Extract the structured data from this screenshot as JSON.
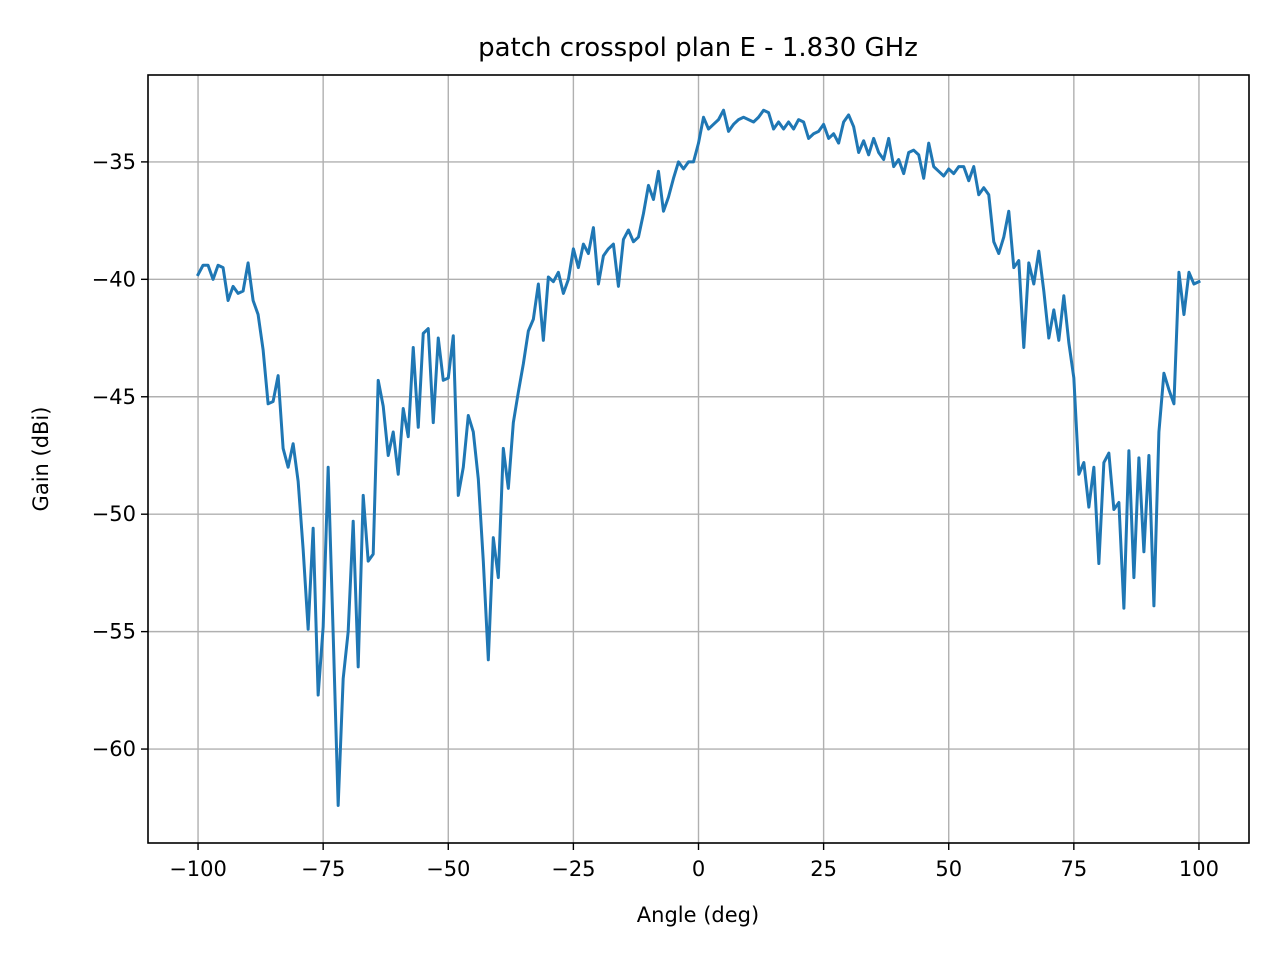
{
  "chart_data": {
    "type": "line",
    "title": "patch crosspol plan E - 1.830 GHz",
    "xlabel": "Angle (deg)",
    "ylabel": "Gain (dBi)",
    "xlim": [
      -110,
      110
    ],
    "ylim": [
      -64.0,
      -31.3
    ],
    "xticks": [
      -100,
      -75,
      -50,
      -25,
      0,
      25,
      50,
      75,
      100
    ],
    "xtick_labels": [
      "−100",
      "−75",
      "−50",
      "−25",
      "0",
      "25",
      "50",
      "75",
      "100"
    ],
    "yticks": [
      -35,
      -40,
      -45,
      -50,
      -55,
      -60
    ],
    "ytick_labels": [
      "−35",
      "−40",
      "−45",
      "−50",
      "−55",
      "−60"
    ],
    "grid": true,
    "line_color": "#1f77b4",
    "series": [
      {
        "x": [
          -100,
          -99,
          -98,
          -97,
          -96,
          -95,
          -94,
          -93,
          -92,
          -91,
          -90,
          -89,
          -88,
          -87,
          -86,
          -85,
          -84,
          -83,
          -82,
          -81,
          -80,
          -79,
          -78,
          -77,
          -76,
          -75,
          -74,
          -73,
          -72,
          -71,
          -70,
          -69,
          -68,
          -67,
          -66,
          -65,
          -64,
          -63,
          -62,
          -61,
          -60,
          -59,
          -58,
          -57,
          -56,
          -55,
          -54,
          -53,
          -52,
          -51,
          -50,
          -49,
          -48,
          -47,
          -46,
          -45,
          -44,
          -43,
          -42,
          -41,
          -40,
          -39,
          -38,
          -37,
          -36,
          -35,
          -34,
          -33,
          -32,
          -31,
          -30,
          -29,
          -28,
          -27,
          -26,
          -25,
          -24,
          -23,
          -22,
          -21,
          -20,
          -19,
          -18,
          -17,
          -16,
          -15,
          -14,
          -13,
          -12,
          -11,
          -10,
          -9,
          -8,
          -7,
          -6,
          -5,
          -4,
          -3,
          -2,
          -1,
          0,
          1,
          2,
          3,
          4,
          5,
          6,
          7,
          8,
          9,
          10,
          11,
          12,
          13,
          14,
          15,
          16,
          17,
          18,
          19,
          20,
          21,
          22,
          23,
          24,
          25,
          26,
          27,
          28,
          29,
          30,
          31,
          32,
          33,
          34,
          35,
          36,
          37,
          38,
          39,
          40,
          41,
          42,
          43,
          44,
          45,
          46,
          47,
          48,
          49,
          50,
          51,
          52,
          53,
          54,
          55,
          56,
          57,
          58,
          59,
          60,
          61,
          62,
          63,
          64,
          65,
          66,
          67,
          68,
          69,
          70,
          71,
          72,
          73,
          74,
          75,
          76,
          77,
          78,
          79,
          80,
          81,
          82,
          83,
          84,
          85,
          86,
          87,
          88,
          89,
          90,
          91,
          92,
          93,
          94,
          95,
          96,
          97,
          98,
          99,
          100
        ],
        "y": [
          -39.8,
          -39.4,
          -39.4,
          -40.0,
          -39.4,
          -39.5,
          -40.9,
          -40.3,
          -40.6,
          -40.5,
          -39.3,
          -40.9,
          -41.5,
          -43.0,
          -45.3,
          -45.2,
          -44.1,
          -47.2,
          -48.0,
          -47.0,
          -48.6,
          -51.5,
          -54.9,
          -50.6,
          -57.7,
          -54.8,
          -48.0,
          -55.1,
          -62.4,
          -57.0,
          -55.0,
          -50.3,
          -56.5,
          -49.2,
          -52.0,
          -51.7,
          -44.3,
          -45.4,
          -47.5,
          -46.5,
          -48.3,
          -45.5,
          -46.7,
          -42.9,
          -46.3,
          -42.3,
          -42.1,
          -46.1,
          -42.5,
          -44.3,
          -44.2,
          -42.4,
          -49.2,
          -48.0,
          -45.8,
          -46.5,
          -48.5,
          -52.0,
          -56.2,
          -51.0,
          -52.7,
          -47.2,
          -48.9,
          -46.1,
          -44.8,
          -43.6,
          -42.2,
          -41.7,
          -40.2,
          -42.6,
          -39.9,
          -40.1,
          -39.7,
          -40.6,
          -40.0,
          -38.7,
          -39.5,
          -38.5,
          -38.9,
          -37.8,
          -40.2,
          -39.0,
          -38.7,
          -38.5,
          -40.3,
          -38.3,
          -37.9,
          -38.4,
          -38.2,
          -37.2,
          -36.0,
          -36.6,
          -35.4,
          -37.1,
          -36.5,
          -35.7,
          -35.0,
          -35.3,
          -35.0,
          -35.0,
          -34.2,
          -33.1,
          -33.6,
          -33.4,
          -33.2,
          -32.8,
          -33.7,
          -33.4,
          -33.2,
          -33.1,
          -33.2,
          -33.3,
          -33.1,
          -32.8,
          -32.9,
          -33.6,
          -33.3,
          -33.6,
          -33.3,
          -33.6,
          -33.2,
          -33.3,
          -34.0,
          -33.8,
          -33.7,
          -33.4,
          -34.0,
          -33.8,
          -34.2,
          -33.3,
          -33.0,
          -33.5,
          -34.6,
          -34.1,
          -34.7,
          -34.0,
          -34.6,
          -34.9,
          -34.0,
          -35.2,
          -34.9,
          -35.5,
          -34.6,
          -34.5,
          -34.7,
          -35.7,
          -34.2,
          -35.2,
          -35.4,
          -35.6,
          -35.3,
          -35.5,
          -35.2,
          -35.2,
          -35.8,
          -35.2,
          -36.4,
          -36.1,
          -36.4,
          -38.4,
          -38.9,
          -38.2,
          -37.1,
          -39.5,
          -39.2,
          -42.9,
          -39.3,
          -40.2,
          -38.8,
          -40.5,
          -42.5,
          -41.3,
          -42.6,
          -40.7,
          -42.7,
          -44.2,
          -48.3,
          -47.8,
          -49.7,
          -48.0,
          -52.1,
          -47.8,
          -47.4,
          -49.8,
          -49.5,
          -54.0,
          -47.3,
          -52.7,
          -47.6,
          -51.6,
          -47.5,
          -53.9,
          -46.5,
          -44.0,
          -44.7,
          -45.3,
          -39.7,
          -41.5,
          -39.7,
          -40.2,
          -40.1
        ]
      }
    ]
  }
}
